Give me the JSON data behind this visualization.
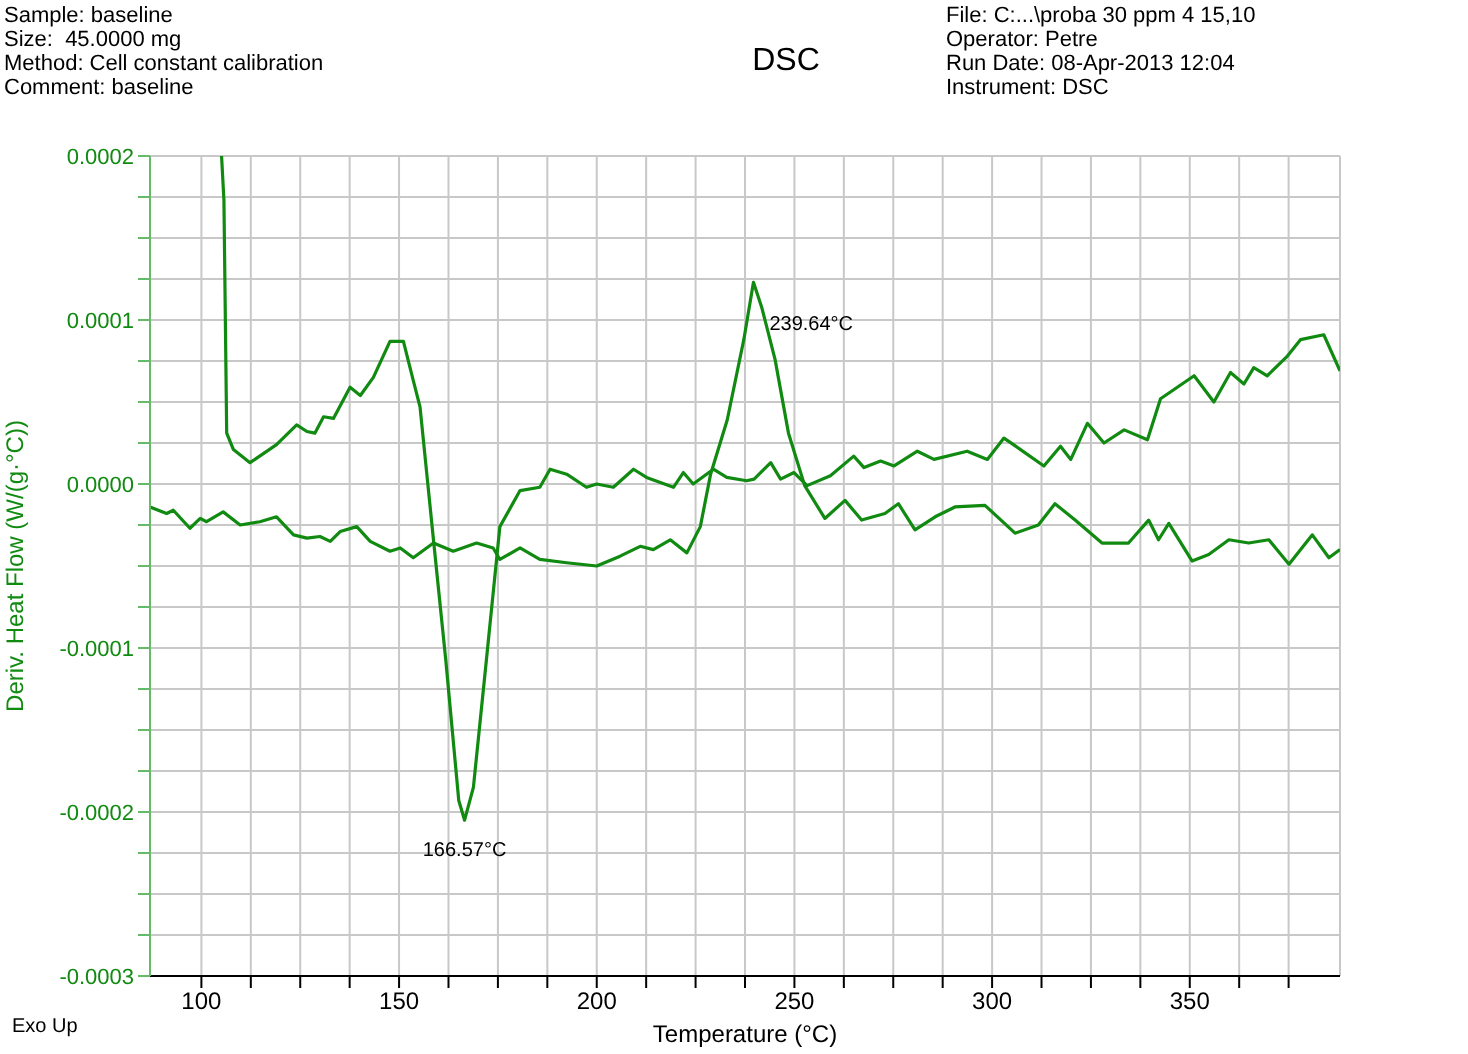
{
  "chart_data": {
    "type": "line",
    "title": "DSC",
    "xlabel": "Temperature (°C)",
    "ylabel": "Deriv. Heat Flow (W/(g·°C))",
    "annotations": [
      "Sample: baseline",
      "Size:  45.0000 mg",
      "Method: Cell constant calibration",
      "Comment: baseline",
      "File: C:...\\proba 30 ppm 4 15,10",
      "Operator: Petre",
      "Run Date: 08-Apr-2013 12:04",
      "Instrument: DSC",
      "Exo Up",
      {
        "text": "239.64°C",
        "x": 239.64,
        "y": 0.000123
      },
      {
        "text": "166.57°C",
        "x": 166.57,
        "y": -0.000205
      }
    ],
    "series": [
      {
        "color": "#118a11",
        "x": [
          105.1,
          105.7,
          106.4,
          108.1,
          112.3,
          119,
          124.1,
          126.7,
          128.7,
          130.9,
          133.4,
          137.6,
          140.2,
          143.5,
          147.7,
          151.1,
          153.6,
          155.3,
          158.7,
          161.8,
          165.1,
          166.57,
          168.8,
          172.1,
          175.5,
          180.6,
          185.6,
          188.2,
          192.4,
          197.4,
          200,
          204.2,
          209.3,
          212.6,
          219.4,
          221.9,
          224.4,
          229.5,
          232.9,
          237.9,
          239.8,
          244,
          246.5,
          249.9,
          253.2,
          259.1,
          265,
          267.6,
          271.8,
          275.2,
          281.1,
          285.3,
          293.7,
          298.8,
          303,
          307.2,
          313.1,
          317.3,
          319.9,
          324.1,
          328.3,
          333.4,
          339.3,
          342.6,
          351.1,
          356.1,
          360.3,
          363.7,
          366.2,
          369.6,
          374.7,
          378,
          383.9,
          388
        ],
        "values": [
          0.0002,
          0.000173,
          3.1e-05,
          2.1e-05,
          1.3e-05,
          2.4e-05,
          3.6e-05,
          3.2e-05,
          3.1e-05,
          4.1e-05,
          4e-05,
          5.9e-05,
          5.4e-05,
          6.5e-05,
          8.7e-05,
          8.7e-05,
          6.3e-05,
          4.7e-05,
          -3.4e-05,
          -0.000107,
          -0.000193,
          -0.000205,
          -0.000185,
          -0.000107,
          -2.6e-05,
          -4e-06,
          -2e-06,
          9e-06,
          6e-06,
          -2e-06,
          0,
          -2e-06,
          9e-06,
          4e-06,
          -2e-06,
          7e-06,
          0,
          9e-06,
          4e-06,
          2e-06,
          3e-06,
          1.3e-05,
          3e-06,
          7e-06,
          -1e-06,
          5e-06,
          1.7e-05,
          1e-05,
          1.4e-05,
          1.1e-05,
          2e-05,
          1.5e-05,
          2e-05,
          1.5e-05,
          2.8e-05,
          2.1e-05,
          1.1e-05,
          2.3e-05,
          1.5e-05,
          3.7e-05,
          2.5e-05,
          3.3e-05,
          2.7e-05,
          5.2e-05,
          6.6e-05,
          5e-05,
          6.8e-05,
          6.1e-05,
          7.1e-05,
          6.6e-05,
          7.8e-05,
          8.8e-05,
          9.1e-05,
          6.9e-05
        ]
      },
      {
        "color": "#118a11",
        "x": [
          87,
          91.2,
          92.9,
          97.1,
          99.7,
          101.3,
          105.5,
          109.8,
          114.8,
          119,
          123.3,
          126.7,
          130,
          132.6,
          135.1,
          139.3,
          142.7,
          147.7,
          150.3,
          153.6,
          158.7,
          163.7,
          169.6,
          173.8,
          175.5,
          180.6,
          185.6,
          192.4,
          200,
          205.9,
          211,
          214.3,
          218.6,
          222.8,
          226.2,
          228.8,
          233,
          237.2,
          239.64,
          241.7,
          245.1,
          248.5,
          252.6,
          257.7,
          262.8,
          267,
          272.9,
          276.3,
          280.5,
          285.6,
          290.6,
          298.2,
          305.8,
          311.7,
          315.9,
          321,
          327.8,
          334.5,
          339.6,
          342.1,
          344.7,
          350.6,
          354.8,
          359.9,
          364.9,
          370,
          375.1,
          381,
          385.2,
          388
        ],
        "values": [
          -1.4e-05,
          -1.8e-05,
          -1.6e-05,
          -2.7e-05,
          -2.1e-05,
          -2.3e-05,
          -1.7e-05,
          -2.5e-05,
          -2.3e-05,
          -2e-05,
          -3.1e-05,
          -3.3e-05,
          -3.2e-05,
          -3.5e-05,
          -2.9e-05,
          -2.6e-05,
          -3.5e-05,
          -4.1e-05,
          -3.9e-05,
          -4.5e-05,
          -3.6e-05,
          -4.1e-05,
          -3.6e-05,
          -3.9e-05,
          -4.6e-05,
          -3.9e-05,
          -4.6e-05,
          -4.8e-05,
          -5e-05,
          -4.4e-05,
          -3.8e-05,
          -4e-05,
          -3.4e-05,
          -4.2e-05,
          -2.6e-05,
          6e-06,
          3.9e-05,
          8.8e-05,
          0.000123,
          0.000108,
          7.6e-05,
          3.1e-05,
          -1e-06,
          -2.1e-05,
          -1e-05,
          -2.2e-05,
          -1.8e-05,
          -1.2e-05,
          -2.8e-05,
          -2e-05,
          -1.4e-05,
          -1.3e-05,
          -3e-05,
          -2.5e-05,
          -1.2e-05,
          -2.2e-05,
          -3.6e-05,
          -3.6e-05,
          -2.2e-05,
          -3.4e-05,
          -2.4e-05,
          -4.7e-05,
          -4.3e-05,
          -3.4e-05,
          -3.6e-05,
          -3.4e-05,
          -4.9e-05,
          -3.1e-05,
          -4.5e-05,
          -4e-05
        ]
      }
    ],
    "xlim": [
      87,
      388
    ],
    "xticks": [
      100,
      {
        "value": 112.5,
        "label": null
      },
      {
        "value": 125,
        "label": null
      },
      {
        "value": 137.5,
        "label": null
      },
      150,
      {
        "value": 162.5,
        "label": null
      },
      {
        "value": 175,
        "label": null
      },
      {
        "value": 187.5,
        "label": null
      },
      200,
      {
        "value": 212.5,
        "label": null
      },
      {
        "value": 225,
        "label": null
      },
      {
        "value": 237.5,
        "label": null
      },
      250,
      {
        "value": 262.5,
        "label": null
      },
      {
        "value": 275,
        "label": null
      },
      {
        "value": 287.5,
        "label": null
      },
      300,
      {
        "value": 312.5,
        "label": null
      },
      {
        "value": 325,
        "label": null
      },
      {
        "value": 337.5,
        "label": null
      },
      350,
      {
        "value": 362.5,
        "label": null
      },
      {
        "value": 375,
        "label": null
      }
    ],
    "ylim": [
      -0.0003,
      0.0002
    ],
    "yticks": [
      {
        "value": -0.0003,
        "label": "-0.0003"
      },
      {
        "value": -0.000275,
        "label": null
      },
      {
        "value": -0.00025,
        "label": null
      },
      {
        "value": -0.000225,
        "label": null
      },
      {
        "value": -0.0002,
        "label": "-0.0002"
      },
      {
        "value": -0.000175,
        "label": null
      },
      {
        "value": -0.00015,
        "label": null
      },
      {
        "value": -0.000125,
        "label": null
      },
      {
        "value": -0.0001,
        "label": "-0.0001"
      },
      {
        "value": -7.5e-05,
        "label": null
      },
      {
        "value": -5e-05,
        "label": null
      },
      {
        "value": -2.5e-05,
        "label": null
      },
      {
        "value": 0,
        "label": "0.0000"
      },
      {
        "value": 2.5e-05,
        "label": null
      },
      {
        "value": 5e-05,
        "label": null
      },
      {
        "value": 7.5e-05,
        "label": null
      },
      {
        "value": 0.0001,
        "label": "0.0001"
      },
      {
        "value": 0.000125,
        "label": null
      },
      {
        "value": 0.00015,
        "label": null
      },
      {
        "value": 0.000175,
        "label": null
      },
      {
        "value": 0.0002,
        "label": "0.0002"
      }
    ],
    "grid": true,
    "marker": "none",
    "line_style": "solid"
  }
}
